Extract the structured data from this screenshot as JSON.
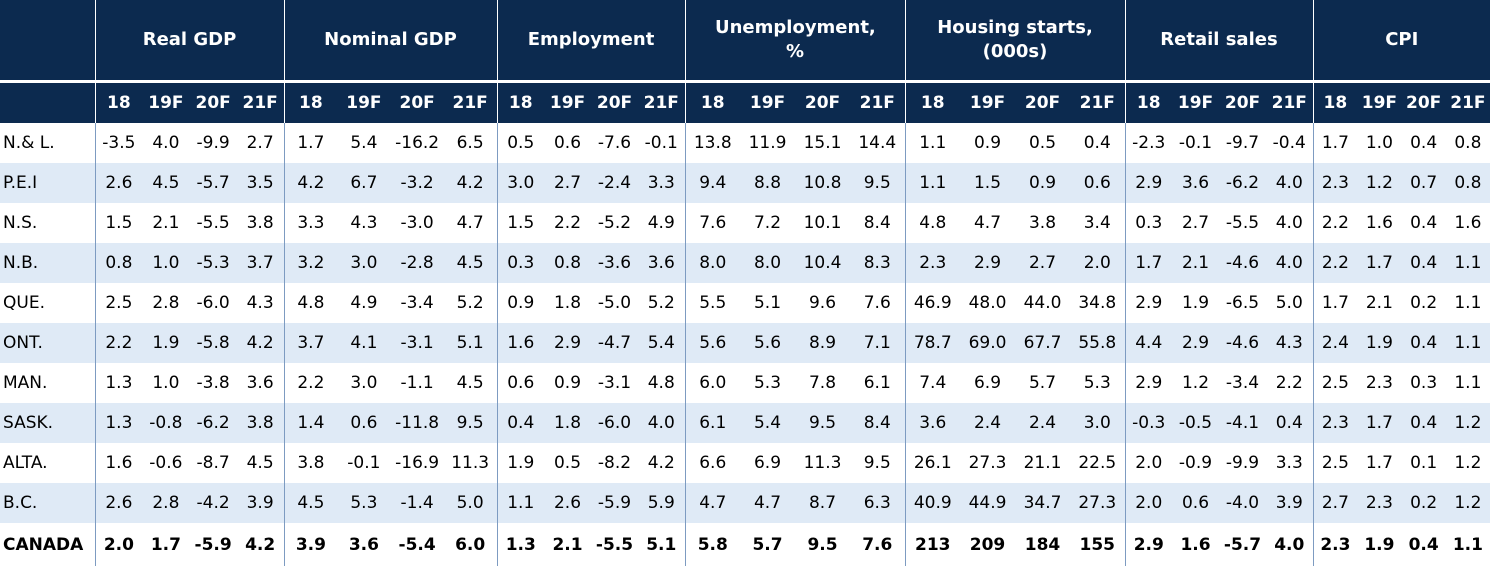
{
  "table": {
    "groups": [
      {
        "title": "Real GDP",
        "years": [
          "18",
          "19F",
          "20F",
          "21F"
        ]
      },
      {
        "title": "Nominal GDP",
        "years": [
          "18",
          "19F",
          "20F",
          "21F"
        ]
      },
      {
        "title": "Employment",
        "years": [
          "18",
          "19F",
          "20F",
          "21F"
        ]
      },
      {
        "title": "Unemployment, %",
        "years": [
          "18",
          "19F",
          "20F",
          "21F"
        ]
      },
      {
        "title": "Housing starts, (000s)",
        "years": [
          "18",
          "19F",
          "20F",
          "21F"
        ]
      },
      {
        "title": "Retail sales",
        "years": [
          "18",
          "19F",
          "20F",
          "21F"
        ]
      },
      {
        "title": "CPI",
        "years": [
          "18",
          "19F",
          "20F",
          "21F"
        ]
      }
    ],
    "rows": [
      {
        "label": "N.& L.",
        "values": [
          "-3.5",
          "4.0",
          "-9.9",
          "2.7",
          "1.7",
          "5.4",
          "-16.2",
          "6.5",
          "0.5",
          "0.6",
          "-7.6",
          "-0.1",
          "13.8",
          "11.9",
          "15.1",
          "14.4",
          "1.1",
          "0.9",
          "0.5",
          "0.4",
          "-2.3",
          "-0.1",
          "-9.7",
          "-0.4",
          "1.7",
          "1.0",
          "0.4",
          "0.8"
        ]
      },
      {
        "label": "P.E.I",
        "values": [
          "2.6",
          "4.5",
          "-5.7",
          "3.5",
          "4.2",
          "6.7",
          "-3.2",
          "4.2",
          "3.0",
          "2.7",
          "-2.4",
          "3.3",
          "9.4",
          "8.8",
          "10.8",
          "9.5",
          "1.1",
          "1.5",
          "0.9",
          "0.6",
          "2.9",
          "3.6",
          "-6.2",
          "4.0",
          "2.3",
          "1.2",
          "0.7",
          "0.8"
        ]
      },
      {
        "label": "N.S.",
        "values": [
          "1.5",
          "2.1",
          "-5.5",
          "3.8",
          "3.3",
          "4.3",
          "-3.0",
          "4.7",
          "1.5",
          "2.2",
          "-5.2",
          "4.9",
          "7.6",
          "7.2",
          "10.1",
          "8.4",
          "4.8",
          "4.7",
          "3.8",
          "3.4",
          "0.3",
          "2.7",
          "-5.5",
          "4.0",
          "2.2",
          "1.6",
          "0.4",
          "1.6"
        ]
      },
      {
        "label": "N.B.",
        "values": [
          "0.8",
          "1.0",
          "-5.3",
          "3.7",
          "3.2",
          "3.0",
          "-2.8",
          "4.5",
          "0.3",
          "0.8",
          "-3.6",
          "3.6",
          "8.0",
          "8.0",
          "10.4",
          "8.3",
          "2.3",
          "2.9",
          "2.7",
          "2.0",
          "1.7",
          "2.1",
          "-4.6",
          "4.0",
          "2.2",
          "1.7",
          "0.4",
          "1.1"
        ]
      },
      {
        "label": "QUE.",
        "values": [
          "2.5",
          "2.8",
          "-6.0",
          "4.3",
          "4.8",
          "4.9",
          "-3.4",
          "5.2",
          "0.9",
          "1.8",
          "-5.0",
          "5.2",
          "5.5",
          "5.1",
          "9.6",
          "7.6",
          "46.9",
          "48.0",
          "44.0",
          "34.8",
          "2.9",
          "1.9",
          "-6.5",
          "5.0",
          "1.7",
          "2.1",
          "0.2",
          "1.1"
        ]
      },
      {
        "label": "ONT.",
        "values": [
          "2.2",
          "1.9",
          "-5.8",
          "4.2",
          "3.7",
          "4.1",
          "-3.1",
          "5.1",
          "1.6",
          "2.9",
          "-4.7",
          "5.4",
          "5.6",
          "5.6",
          "8.9",
          "7.1",
          "78.7",
          "69.0",
          "67.7",
          "55.8",
          "4.4",
          "2.9",
          "-4.6",
          "4.3",
          "2.4",
          "1.9",
          "0.4",
          "1.1"
        ]
      },
      {
        "label": "MAN.",
        "values": [
          "1.3",
          "1.0",
          "-3.8",
          "3.6",
          "2.2",
          "3.0",
          "-1.1",
          "4.5",
          "0.6",
          "0.9",
          "-3.1",
          "4.8",
          "6.0",
          "5.3",
          "7.8",
          "6.1",
          "7.4",
          "6.9",
          "5.7",
          "5.3",
          "2.9",
          "1.2",
          "-3.4",
          "2.2",
          "2.5",
          "2.3",
          "0.3",
          "1.1"
        ]
      },
      {
        "label": "SASK.",
        "values": [
          "1.3",
          "-0.8",
          "-6.2",
          "3.8",
          "1.4",
          "0.6",
          "-11.8",
          "9.5",
          "0.4",
          "1.8",
          "-6.0",
          "4.0",
          "6.1",
          "5.4",
          "9.5",
          "8.4",
          "3.6",
          "2.4",
          "2.4",
          "3.0",
          "-0.3",
          "-0.5",
          "-4.1",
          "0.4",
          "2.3",
          "1.7",
          "0.4",
          "1.2"
        ]
      },
      {
        "label": "ALTA.",
        "values": [
          "1.6",
          "-0.6",
          "-8.7",
          "4.5",
          "3.8",
          "-0.1",
          "-16.9",
          "11.3",
          "1.9",
          "0.5",
          "-8.2",
          "4.2",
          "6.6",
          "6.9",
          "11.3",
          "9.5",
          "26.1",
          "27.3",
          "21.1",
          "22.5",
          "2.0",
          "-0.9",
          "-9.9",
          "3.3",
          "2.5",
          "1.7",
          "0.1",
          "1.2"
        ]
      },
      {
        "label": "B.C.",
        "values": [
          "2.6",
          "2.8",
          "-4.2",
          "3.9",
          "4.5",
          "5.3",
          "-1.4",
          "5.0",
          "1.1",
          "2.6",
          "-5.9",
          "5.9",
          "4.7",
          "4.7",
          "8.7",
          "6.3",
          "40.9",
          "44.9",
          "34.7",
          "27.3",
          "2.0",
          "0.6",
          "-4.0",
          "3.9",
          "2.7",
          "2.3",
          "0.2",
          "1.2"
        ]
      },
      {
        "label": "CANADA",
        "values": [
          "2.0",
          "1.7",
          "-5.9",
          "4.2",
          "3.9",
          "3.6",
          "-5.4",
          "6.0",
          "1.3",
          "2.1",
          "-5.5",
          "5.1",
          "5.8",
          "5.7",
          "9.5",
          "7.6",
          "213",
          "209",
          "184",
          "155",
          "2.9",
          "1.6",
          "-5.7",
          "4.0",
          "2.3",
          "1.9",
          "0.4",
          "1.1"
        ]
      }
    ]
  }
}
